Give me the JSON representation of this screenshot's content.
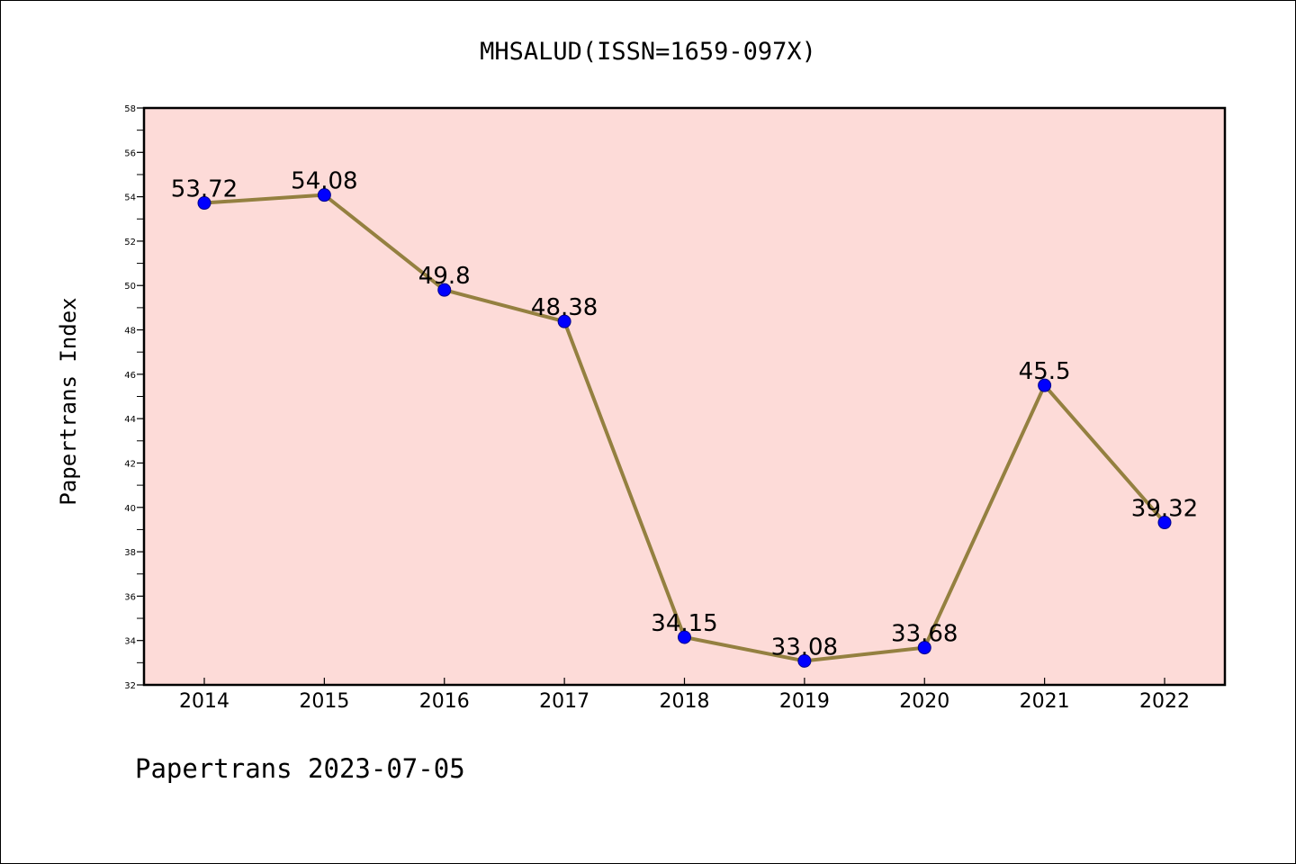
{
  "chart_data": {
    "type": "line",
    "title": "MHSALUD(ISSN=1659-097X)",
    "xlabel": "",
    "ylabel": "Papertrans Index",
    "footer": "Papertrans 2023-07-05",
    "categories": [
      "2014",
      "2015",
      "2016",
      "2017",
      "2018",
      "2019",
      "2020",
      "2021",
      "2022"
    ],
    "values": [
      53.72,
      54.08,
      49.8,
      48.38,
      34.15,
      33.08,
      33.68,
      45.5,
      39.32
    ],
    "value_labels": [
      "53.72",
      "54.08",
      "49.8",
      "48.38",
      "34.15",
      "33.08",
      "33.68",
      "45.5",
      "39.32"
    ],
    "ylim": [
      32,
      58
    ],
    "yticks": [
      32,
      34,
      36,
      38,
      40,
      42,
      44,
      46,
      48,
      50,
      52,
      54,
      56,
      58
    ],
    "ytick_labels": [
      "32",
      "34",
      "36",
      "38",
      "40",
      "42",
      "44",
      "46",
      "48",
      "50",
      "52",
      "54",
      "56",
      "58"
    ],
    "grid": false,
    "colors": {
      "plot_background": "#fddbd8",
      "line": "#948040",
      "marker": "#0000ff",
      "axis": "#000000"
    }
  }
}
